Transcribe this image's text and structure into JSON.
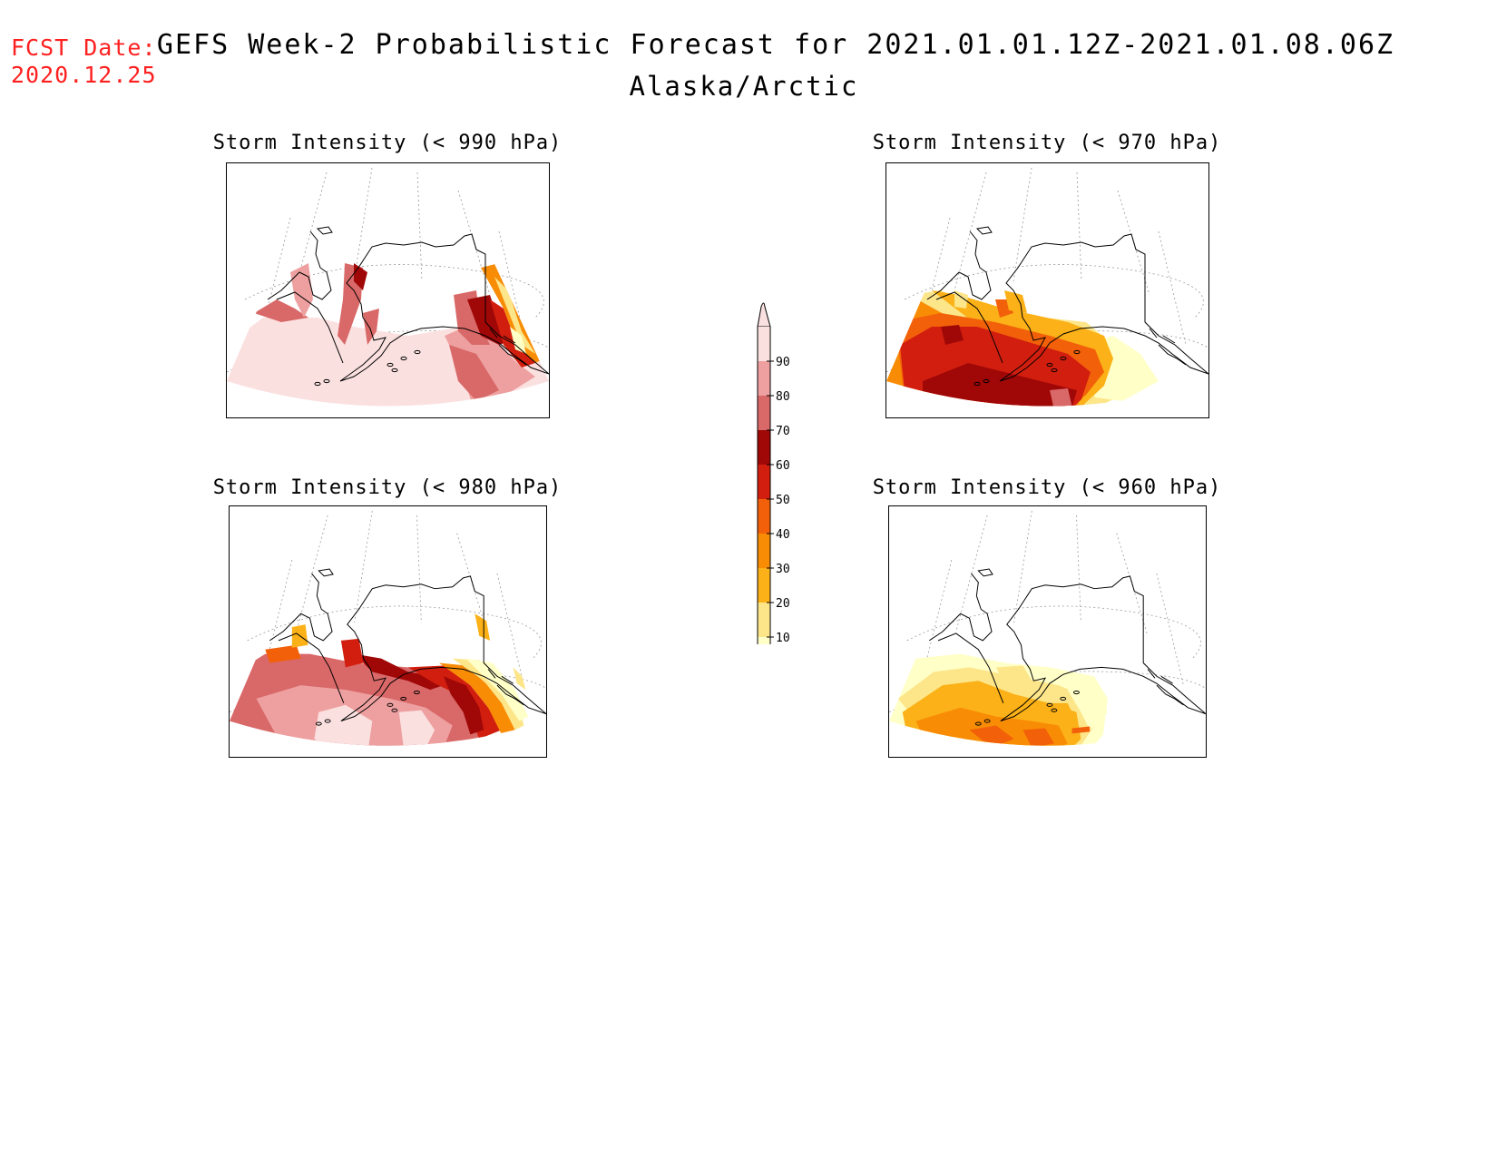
{
  "header": {
    "fcst_label": "FCST Date:",
    "fcst_date": "2020.12.25",
    "title": "GEFS Week-2 Probabilistic Forecast for 2021.01.01.12Z-2021.01.08.06Z",
    "subtitle": "Alaska/Arctic"
  },
  "panels": [
    {
      "title": "Storm Intensity (< 990 hPa)",
      "dominant": "90+",
      "peak_region": "Gulf of Alaska / SE Alaska coast"
    },
    {
      "title": "Storm Intensity (< 970 hPa)",
      "dominant": "60-70",
      "peak_region": "Bering Sea / Aleutians"
    },
    {
      "title": "Storm Intensity (< 980 hPa)",
      "dominant": "80-90",
      "peak_region": "Bering Sea to Gulf of Alaska"
    },
    {
      "title": "Storm Intensity (< 960 hPa)",
      "dominant": "30-40",
      "peak_region": "North Pacific south of Alaska"
    }
  ],
  "colorbar": {
    "ticks": [
      "90",
      "80",
      "70",
      "60",
      "50",
      "40",
      "30",
      "20",
      "10"
    ],
    "colors": {
      "c10": "#ffffc8",
      "c20": "#fde68a",
      "c30": "#fbb117",
      "c40": "#f98c05",
      "c50": "#f26109",
      "c60": "#d21e0f",
      "c70": "#a00808",
      "c80": "#d96868",
      "c90": "#eea0a0",
      "c100": "#fbe0e0"
    }
  }
}
